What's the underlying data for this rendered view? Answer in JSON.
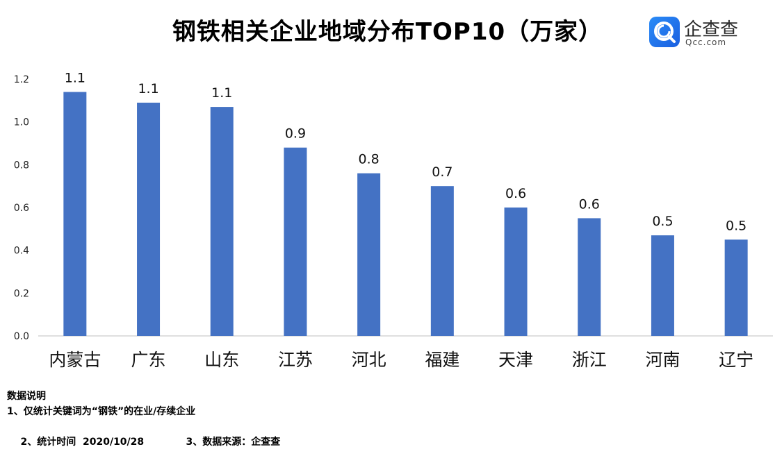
{
  "title": "钢铁相关企业地域分布TOP10（万家）",
  "logo": {
    "name": "企查查",
    "url": "Qcc.com"
  },
  "chart_data": {
    "type": "bar",
    "categories": [
      "内蒙古",
      "广东",
      "山东",
      "江苏",
      "河北",
      "福建",
      "天津",
      "浙江",
      "河南",
      "辽宁"
    ],
    "values": [
      1.14,
      1.09,
      1.07,
      0.88,
      0.76,
      0.7,
      0.6,
      0.55,
      0.47,
      0.45
    ],
    "data_labels": [
      "1.1",
      "1.1",
      "1.1",
      "0.9",
      "0.8",
      "0.7",
      "0.6",
      "0.6",
      "0.5",
      "0.5"
    ],
    "ylim": [
      0,
      1.2
    ],
    "yticks": [
      "0.0",
      "0.2",
      "0.4",
      "0.6",
      "0.8",
      "1.0",
      "1.2"
    ],
    "bar_color": "#4472c4",
    "grid": false
  },
  "notes": {
    "heading": "数据说明",
    "line1": "1、仅统计关键词为“钢铁”的在业/存续企业",
    "line2a": "2、统计时间  2020/10/28",
    "line2b": "3、数据来源：企查查"
  }
}
